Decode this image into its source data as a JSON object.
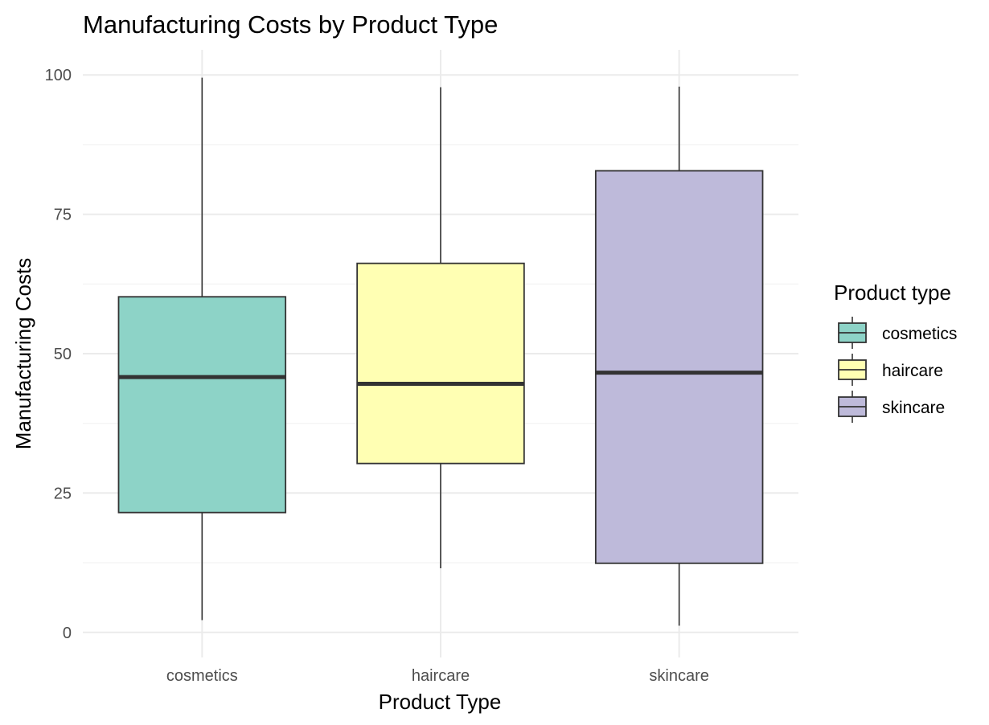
{
  "chart_data": {
    "type": "boxplot",
    "title": "Manufacturing Costs by Product Type",
    "xlabel": "Product Type",
    "ylabel": "Manufacturing Costs",
    "ylim": [
      -4.5,
      104.5
    ],
    "yticks": [
      0,
      25,
      50,
      75,
      100
    ],
    "yticks_minor": [
      12.5,
      37.5,
      62.5,
      87.5
    ],
    "grid": true,
    "legend": {
      "title": "Product type",
      "position": "right"
    },
    "categories": [
      "cosmetics",
      "haircare",
      "skincare"
    ],
    "series": [
      {
        "name": "cosmetics",
        "color": "#8DD3C7",
        "min": 2.2,
        "q1": 21.5,
        "median": 45.8,
        "q3": 60.2,
        "max": 99.5
      },
      {
        "name": "haircare",
        "color": "#FFFFB3",
        "min": 11.5,
        "q1": 30.3,
        "median": 44.6,
        "q3": 66.2,
        "max": 97.8
      },
      {
        "name": "skincare",
        "color": "#BEBADA",
        "min": 1.2,
        "q1": 12.4,
        "median": 46.6,
        "q3": 82.8,
        "max": 97.9
      }
    ]
  }
}
